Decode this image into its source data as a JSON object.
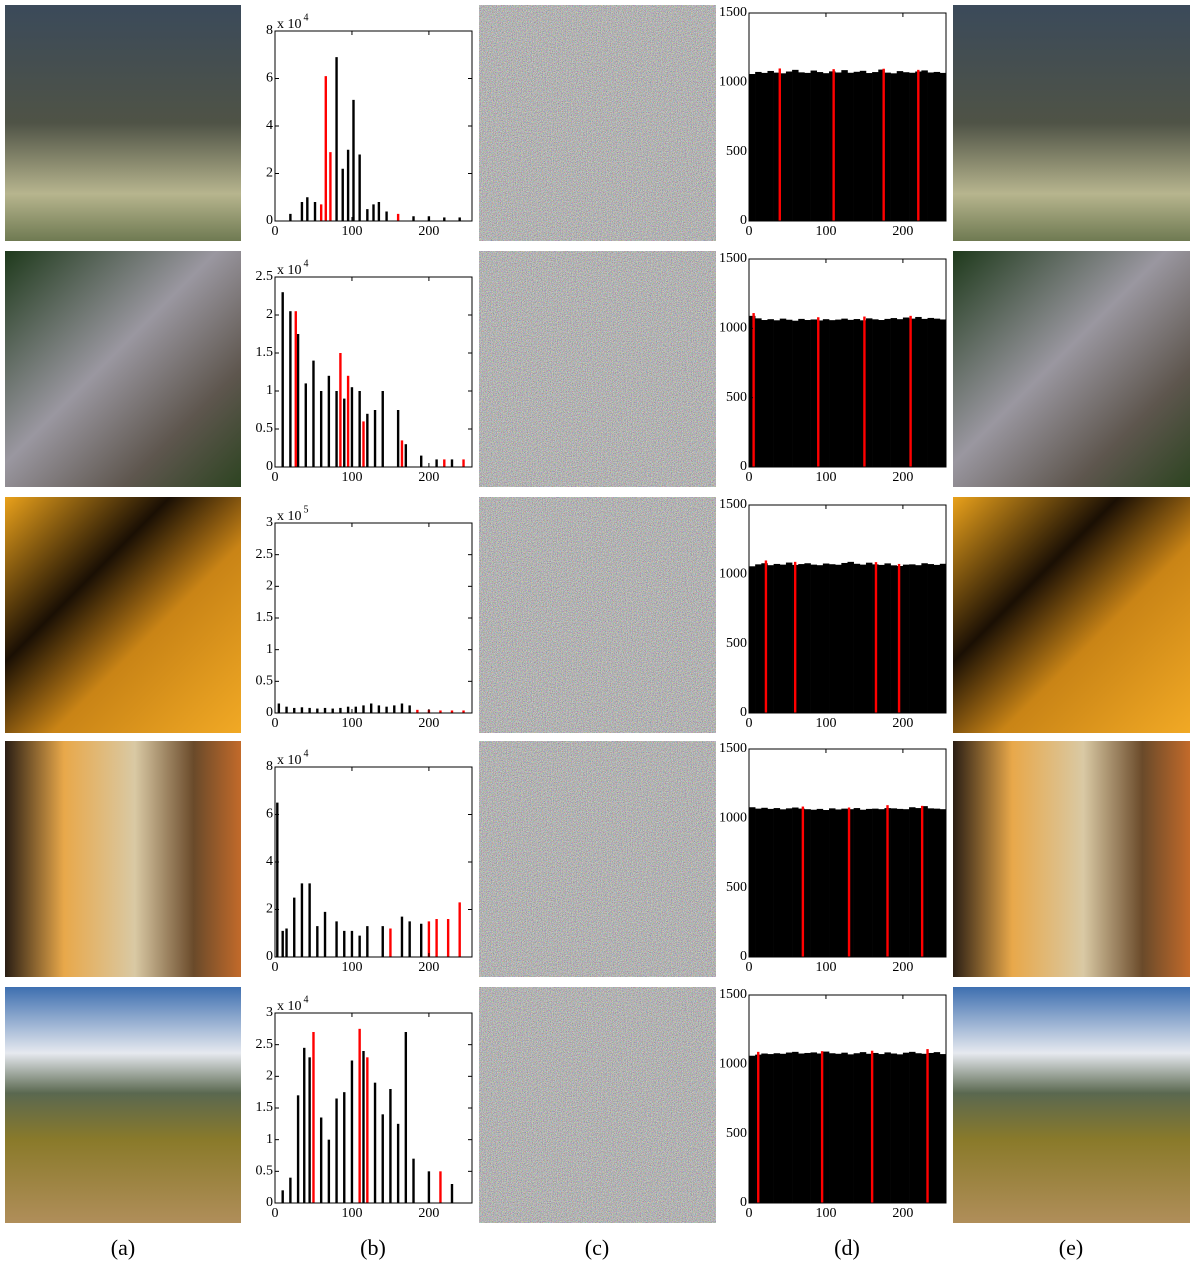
{
  "column_labels": [
    "(a)",
    "(b)",
    "(c)",
    "(d)",
    "(e)"
  ],
  "chart_data": [
    {
      "type": "bar",
      "xlim": [
        0,
        256
      ],
      "xticks": [
        0,
        100,
        200
      ],
      "ylim": [
        0,
        8
      ],
      "yticks": [
        0,
        2,
        4,
        6,
        8
      ],
      "y_exponent_base": "x 10",
      "y_exponent_power": "4",
      "series": [
        {
          "color": "#000000",
          "x": [
            20,
            35,
            42,
            52,
            80,
            88,
            95,
            102,
            110,
            120,
            128,
            135,
            145,
            180,
            200,
            220,
            240
          ],
          "values": [
            0.3,
            0.8,
            1.0,
            0.8,
            6.9,
            2.2,
            3.0,
            5.1,
            2.8,
            0.5,
            0.7,
            0.8,
            0.4,
            0.2,
            0.2,
            0.15,
            0.15
          ]
        },
        {
          "color": "#ff0000",
          "x": [
            60,
            66,
            72,
            160
          ],
          "values": [
            0.7,
            6.1,
            2.9,
            0.3
          ]
        }
      ]
    },
    {
      "type": "histogram",
      "xlim": [
        0,
        256
      ],
      "xticks": [
        0,
        100,
        200
      ],
      "ylim": [
        0,
        1500
      ],
      "yticks": [
        0,
        500,
        1000,
        1500
      ],
      "bins": [
        0,
        8,
        16,
        24,
        32,
        40,
        48,
        56,
        64,
        72,
        80,
        88,
        96,
        104,
        112,
        120,
        128,
        136,
        144,
        152,
        160,
        168,
        176,
        184,
        192,
        200,
        208,
        216,
        224,
        232,
        240,
        248,
        256
      ],
      "color": "#000000",
      "values": [
        1060,
        1075,
        1068,
        1082,
        1070,
        1065,
        1078,
        1090,
        1072,
        1068,
        1085,
        1074,
        1066,
        1079,
        1071,
        1088,
        1069,
        1076,
        1083,
        1067,
        1074,
        1092,
        1070,
        1065,
        1081,
        1073,
        1069,
        1078,
        1086,
        1071,
        1075,
        1068
      ],
      "overlay": {
        "color": "#ff0000",
        "x": [
          40,
          110,
          175,
          220
        ],
        "values": [
          1100,
          1095,
          1098,
          1090
        ]
      }
    },
    {
      "type": "bar",
      "xlim": [
        0,
        256
      ],
      "xticks": [
        0,
        100,
        200
      ],
      "ylim": [
        0,
        2.5
      ],
      "yticks": [
        0,
        0.5,
        1,
        1.5,
        2,
        2.5
      ],
      "y_exponent_base": "x 10",
      "y_exponent_power": "4",
      "series": [
        {
          "color": "#000000",
          "x": [
            10,
            20,
            30,
            40,
            50,
            60,
            70,
            80,
            90,
            100,
            110,
            120,
            130,
            140,
            160,
            170,
            190,
            210,
            230
          ],
          "values": [
            2.3,
            2.05,
            1.75,
            1.1,
            1.4,
            1.0,
            1.2,
            1.0,
            0.9,
            1.05,
            1.0,
            0.7,
            0.75,
            1.0,
            0.75,
            0.3,
            0.15,
            0.1,
            0.1
          ]
        },
        {
          "color": "#ff0000",
          "x": [
            27,
            85,
            95,
            115,
            165,
            220,
            245
          ],
          "values": [
            2.05,
            1.5,
            1.2,
            0.6,
            0.35,
            0.1,
            0.1
          ]
        }
      ]
    },
    {
      "type": "histogram",
      "xlim": [
        0,
        256
      ],
      "xticks": [
        0,
        100,
        200
      ],
      "ylim": [
        0,
        1500
      ],
      "yticks": [
        0,
        500,
        1000,
        1500
      ],
      "bins": [
        0,
        8,
        16,
        24,
        32,
        40,
        48,
        56,
        64,
        72,
        80,
        88,
        96,
        104,
        112,
        120,
        128,
        136,
        144,
        152,
        160,
        168,
        176,
        184,
        192,
        200,
        208,
        216,
        224,
        232,
        240,
        248,
        256
      ],
      "color": "#000000",
      "values": [
        1090,
        1072,
        1060,
        1066,
        1058,
        1070,
        1062,
        1055,
        1068,
        1060,
        1064,
        1057,
        1066,
        1059,
        1063,
        1070,
        1061,
        1067,
        1058,
        1072,
        1065,
        1060,
        1068,
        1074,
        1066,
        1078,
        1070,
        1082,
        1068,
        1075,
        1070,
        1064
      ],
      "overlay": {
        "color": "#ff0000",
        "x": [
          6,
          90,
          150,
          210
        ],
        "values": [
          1110,
          1080,
          1085,
          1090
        ]
      }
    },
    {
      "type": "bar",
      "xlim": [
        0,
        256
      ],
      "xticks": [
        0,
        100,
        200
      ],
      "ylim": [
        0,
        3
      ],
      "yticks": [
        0,
        0.5,
        1,
        1.5,
        2,
        2.5,
        3
      ],
      "y_exponent_base": "x 10",
      "y_exponent_power": "5",
      "series": [
        {
          "color": "#000000",
          "x": [
            5,
            15,
            25,
            35,
            45,
            55,
            65,
            75,
            85,
            95,
            105,
            115,
            125,
            135,
            145,
            155,
            165,
            175
          ],
          "values": [
            0.15,
            0.1,
            0.08,
            0.09,
            0.08,
            0.07,
            0.08,
            0.07,
            0.08,
            0.1,
            0.1,
            0.12,
            0.15,
            0.12,
            0.1,
            0.12,
            0.15,
            0.12
          ]
        },
        {
          "color": "#ff0000",
          "x": [
            185,
            200,
            215,
            230,
            245
          ],
          "values": [
            0.05,
            0.05,
            0.04,
            0.04,
            0.04
          ]
        }
      ]
    },
    {
      "type": "histogram",
      "xlim": [
        0,
        256
      ],
      "xticks": [
        0,
        100,
        200
      ],
      "ylim": [
        0,
        1500
      ],
      "yticks": [
        0,
        500,
        1000,
        1500
      ],
      "bins": [
        0,
        8,
        16,
        24,
        32,
        40,
        48,
        56,
        64,
        72,
        80,
        88,
        96,
        104,
        112,
        120,
        128,
        136,
        144,
        152,
        160,
        168,
        176,
        184,
        192,
        200,
        208,
        216,
        224,
        232,
        240,
        248,
        256
      ],
      "color": "#000000",
      "values": [
        1058,
        1072,
        1080,
        1066,
        1075,
        1070,
        1085,
        1068,
        1074,
        1080,
        1070,
        1066,
        1078,
        1073,
        1069,
        1082,
        1090,
        1076,
        1070,
        1084,
        1072,
        1068,
        1079,
        1065,
        1060,
        1070,
        1072,
        1066,
        1080,
        1074,
        1068,
        1076
      ],
      "overlay": {
        "color": "#ff0000",
        "x": [
          22,
          60,
          165,
          195
        ],
        "values": [
          1100,
          1090,
          1088,
          1075
        ]
      }
    },
    {
      "type": "bar",
      "xlim": [
        0,
        256
      ],
      "xticks": [
        0,
        100,
        200
      ],
      "ylim": [
        0,
        8
      ],
      "yticks": [
        0,
        2,
        4,
        6,
        8
      ],
      "y_exponent_base": "x 10",
      "y_exponent_power": "4",
      "series": [
        {
          "color": "#000000",
          "x": [
            3,
            10,
            15,
            25,
            35,
            45,
            55,
            65,
            80,
            90,
            100,
            110,
            120,
            140,
            165,
            175,
            190
          ],
          "values": [
            6.5,
            1.1,
            1.2,
            2.5,
            3.1,
            3.1,
            1.3,
            1.9,
            1.5,
            1.1,
            1.1,
            0.9,
            1.3,
            1.3,
            1.7,
            1.5,
            1.4
          ]
        },
        {
          "color": "#ff0000",
          "x": [
            150,
            200,
            210,
            225,
            240
          ],
          "values": [
            1.2,
            1.5,
            1.6,
            1.6,
            2.3
          ]
        }
      ]
    },
    {
      "type": "histogram",
      "xlim": [
        0,
        256
      ],
      "xticks": [
        0,
        100,
        200
      ],
      "ylim": [
        0,
        1500
      ],
      "yticks": [
        0,
        500,
        1000,
        1500
      ],
      "bins": [
        0,
        8,
        16,
        24,
        32,
        40,
        48,
        56,
        64,
        72,
        80,
        88,
        96,
        104,
        112,
        120,
        128,
        136,
        144,
        152,
        160,
        168,
        176,
        184,
        192,
        200,
        208,
        216,
        224,
        232,
        240,
        248,
        256
      ],
      "color": "#000000",
      "values": [
        1080,
        1070,
        1076,
        1068,
        1074,
        1065,
        1072,
        1078,
        1070,
        1066,
        1062,
        1068,
        1060,
        1072,
        1064,
        1070,
        1066,
        1074,
        1062,
        1068,
        1070,
        1066,
        1074,
        1072,
        1068,
        1066,
        1080,
        1074,
        1088,
        1072,
        1070,
        1066
      ],
      "overlay": {
        "color": "#ff0000",
        "x": [
          70,
          130,
          180,
          225
        ],
        "values": [
          1085,
          1078,
          1095,
          1090
        ]
      }
    },
    {
      "type": "bar",
      "xlim": [
        0,
        256
      ],
      "xticks": [
        0,
        100,
        200
      ],
      "ylim": [
        0,
        3
      ],
      "yticks": [
        0,
        0.5,
        1,
        1.5,
        2,
        2.5,
        3
      ],
      "y_exponent_base": "x 10",
      "y_exponent_power": "4",
      "series": [
        {
          "color": "#000000",
          "x": [
            10,
            20,
            30,
            38,
            45,
            60,
            70,
            80,
            90,
            100,
            115,
            130,
            140,
            150,
            160,
            170,
            180,
            200,
            230
          ],
          "values": [
            0.2,
            0.4,
            1.7,
            2.45,
            2.3,
            1.35,
            1.0,
            1.65,
            1.75,
            2.25,
            2.4,
            1.9,
            1.4,
            1.8,
            1.25,
            2.7,
            0.7,
            0.5,
            0.3
          ]
        },
        {
          "color": "#ff0000",
          "x": [
            50,
            110,
            120,
            215
          ],
          "values": [
            2.7,
            2.75,
            2.3,
            0.5
          ]
        }
      ]
    },
    {
      "type": "histogram",
      "xlim": [
        0,
        256
      ],
      "xticks": [
        0,
        100,
        200
      ],
      "ylim": [
        0,
        1500
      ],
      "yticks": [
        0,
        500,
        1000,
        1500
      ],
      "bins": [
        0,
        8,
        16,
        24,
        32,
        40,
        48,
        56,
        64,
        72,
        80,
        88,
        96,
        104,
        112,
        120,
        128,
        136,
        144,
        152,
        160,
        168,
        176,
        184,
        192,
        200,
        208,
        216,
        224,
        232,
        240,
        248,
        256
      ],
      "color": "#000000",
      "values": [
        1062,
        1070,
        1078,
        1074,
        1080,
        1076,
        1085,
        1090,
        1078,
        1082,
        1086,
        1078,
        1092,
        1080,
        1076,
        1084,
        1072,
        1080,
        1088,
        1076,
        1082,
        1074,
        1086,
        1078,
        1072,
        1084,
        1090,
        1080,
        1076,
        1082,
        1088,
        1074
      ],
      "overlay": {
        "color": "#ff0000",
        "x": [
          12,
          95,
          160,
          232
        ],
        "values": [
          1090,
          1095,
          1098,
          1110
        ]
      }
    }
  ]
}
